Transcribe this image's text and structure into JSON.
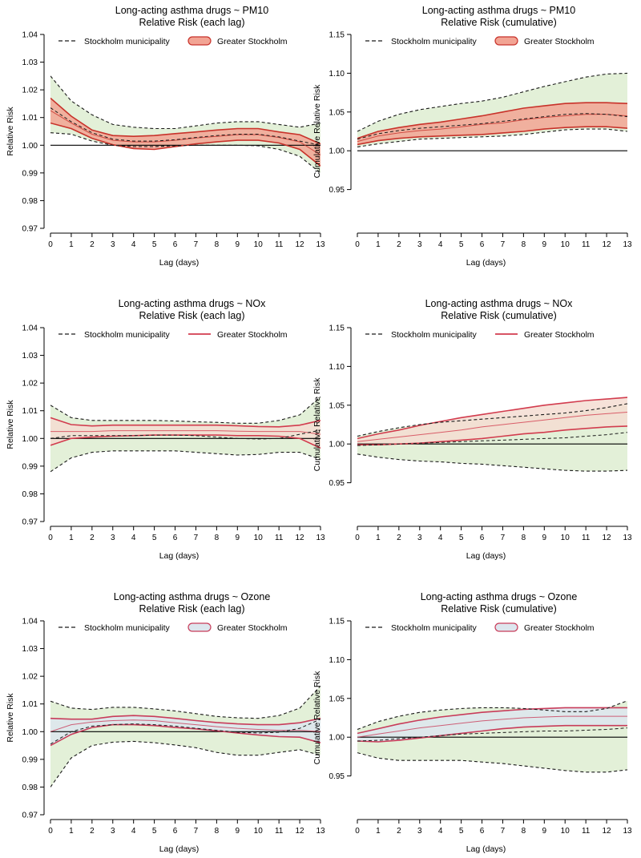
{
  "figure": {
    "xlabel": "Lag (days)",
    "legend_primary": "Stockholm municipality",
    "legend_secondary": "Greater Stockholm"
  },
  "colors": {
    "band_outer": "#e3f0d8",
    "pm10_band": "#f2a494",
    "pm10_line": "#c8322a",
    "nox_band": "#f4ddd2",
    "nox_line": "#d23c4e",
    "ozone_band": "#dde6ee",
    "ozone_line": "#c83c5a",
    "dashed": "#1a1a1a",
    "reference": "#000000"
  },
  "chart_data": [
    {
      "type": "line",
      "panel": "pm10-each",
      "title": "Long-acting asthma drugs ~ PM10",
      "subtitle": "Relative Risk (each lag)",
      "xlabel": "Lag (days)",
      "ylabel": "Relative Risk",
      "xlim": [
        0,
        13
      ],
      "ylim": [
        0.97,
        1.04
      ],
      "x_ticks": [
        "0",
        "1",
        "2",
        "3",
        "4",
        "5",
        "6",
        "7",
        "8",
        "9",
        "10",
        "11",
        "12",
        "13"
      ],
      "y_ticks": [
        "0.97",
        "0.98",
        "0.99",
        "1.00",
        "1.01",
        "1.02",
        "1.03",
        "1.04"
      ],
      "reference": 1.0,
      "band_key": "pm10",
      "legend_filled": true,
      "x": [
        0,
        1,
        2,
        3,
        4,
        5,
        6,
        7,
        8,
        9,
        10,
        11,
        12,
        13
      ],
      "series": [
        {
          "name": "Stockholm municipality",
          "estimate": [
            1.0135,
            1.0085,
            1.0045,
            1.0022,
            1.0015,
            1.0015,
            1.002,
            1.0028,
            1.0035,
            1.004,
            1.004,
            1.003,
            1.0015,
            1.0
          ],
          "lower": [
            1.0045,
            1.004,
            1.0015,
            1.0,
            0.9995,
            0.9995,
            0.9998,
            1.0,
            1.0,
            1.0,
            0.9998,
            0.9985,
            0.996,
            0.99
          ],
          "upper": [
            1.025,
            1.016,
            1.011,
            1.0075,
            1.0065,
            1.006,
            1.006,
            1.007,
            1.008,
            1.0085,
            1.0085,
            1.0075,
            1.0065,
            1.008
          ]
        },
        {
          "name": "Greater Stockholm",
          "estimate": [
            1.0125,
            1.008,
            1.004,
            1.0018,
            1.0012,
            1.0012,
            1.0018,
            1.0026,
            1.0032,
            1.0038,
            1.0038,
            1.0028,
            1.0012,
            0.9965
          ],
          "lower": [
            1.008,
            1.006,
            1.0025,
            1.0002,
            0.9988,
            0.9985,
            0.9995,
            1.0005,
            1.0012,
            1.0018,
            1.0018,
            1.0008,
            0.9985,
            0.9925
          ],
          "upper": [
            1.017,
            1.0105,
            1.0055,
            1.0035,
            1.0032,
            1.0035,
            1.0042,
            1.0048,
            1.0055,
            1.006,
            1.006,
            1.0048,
            1.0038,
            1.0005
          ]
        }
      ]
    },
    {
      "type": "line",
      "panel": "pm10-cum",
      "title": "Long-acting asthma drugs ~ PM10",
      "subtitle": "Relative Risk (cumulative)",
      "xlabel": "Lag (days)",
      "ylabel": "Cumulative Relative Risk",
      "xlim": [
        0,
        13
      ],
      "ylim": [
        0.9,
        1.15
      ],
      "x_ticks": [
        "0",
        "1",
        "2",
        "3",
        "4",
        "5",
        "6",
        "7",
        "8",
        "9",
        "10",
        "11",
        "12",
        "13"
      ],
      "y_ticks": [
        "0.95",
        "1.00",
        "1.05",
        "1.10",
        "1.15"
      ],
      "reference": 1.0,
      "band_key": "pm10",
      "legend_filled": true,
      "x": [
        0,
        1,
        2,
        3,
        4,
        5,
        6,
        7,
        8,
        9,
        10,
        11,
        12,
        13
      ],
      "series": [
        {
          "name": "Stockholm municipality",
          "estimate": [
            1.015,
            1.022,
            1.026,
            1.029,
            1.031,
            1.033,
            1.035,
            1.038,
            1.041,
            1.044,
            1.047,
            1.048,
            1.047,
            1.044
          ],
          "lower": [
            1.005,
            1.009,
            1.012,
            1.015,
            1.016,
            1.017,
            1.018,
            1.019,
            1.021,
            1.024,
            1.027,
            1.028,
            1.028,
            1.025
          ],
          "upper": [
            1.025,
            1.038,
            1.047,
            1.053,
            1.057,
            1.061,
            1.064,
            1.069,
            1.076,
            1.083,
            1.089,
            1.095,
            1.099,
            1.1
          ]
        },
        {
          "name": "Greater Stockholm",
          "estimate": [
            1.012,
            1.019,
            1.023,
            1.026,
            1.028,
            1.031,
            1.034,
            1.036,
            1.04,
            1.043,
            1.045,
            1.047,
            1.047,
            1.045
          ],
          "lower": [
            1.008,
            1.013,
            1.016,
            1.018,
            1.019,
            1.02,
            1.021,
            1.023,
            1.025,
            1.028,
            1.03,
            1.031,
            1.031,
            1.029
          ],
          "upper": [
            1.016,
            1.025,
            1.03,
            1.034,
            1.037,
            1.041,
            1.045,
            1.05,
            1.055,
            1.058,
            1.061,
            1.062,
            1.062,
            1.061
          ]
        }
      ]
    },
    {
      "type": "line",
      "panel": "nox-each",
      "title": "Long-acting asthma drugs ~ NOx",
      "subtitle": "Relative Risk (each lag)",
      "xlabel": "Lag (days)",
      "ylabel": "Relative Risk",
      "xlim": [
        0,
        13
      ],
      "ylim": [
        0.97,
        1.04
      ],
      "x_ticks": [
        "0",
        "1",
        "2",
        "3",
        "4",
        "5",
        "6",
        "7",
        "8",
        "9",
        "10",
        "11",
        "12",
        "13"
      ],
      "y_ticks": [
        "0.97",
        "0.98",
        "0.99",
        "1.00",
        "1.01",
        "1.02",
        "1.03",
        "1.04"
      ],
      "reference": 1.0,
      "band_key": "nox",
      "legend_filled": false,
      "x": [
        0,
        1,
        2,
        3,
        4,
        5,
        6,
        7,
        8,
        9,
        10,
        11,
        12,
        13
      ],
      "series": [
        {
          "name": "Stockholm municipality",
          "estimate": [
            1.0,
            1.001,
            1.001,
            1.001,
            1.001,
            1.0012,
            1.0012,
            1.001,
            1.0005,
            1.0,
            0.9998,
            1.0,
            1.0015,
            1.003
          ],
          "lower": [
            0.988,
            0.993,
            0.995,
            0.9955,
            0.9955,
            0.9955,
            0.9955,
            0.995,
            0.9945,
            0.994,
            0.9942,
            0.995,
            0.995,
            0.9925
          ],
          "upper": [
            1.012,
            1.0075,
            1.0065,
            1.0065,
            1.0065,
            1.0065,
            1.0063,
            1.006,
            1.0058,
            1.0055,
            1.0055,
            1.0065,
            1.0085,
            1.015
          ]
        },
        {
          "name": "Greater Stockholm",
          "estimate": [
            1.0025,
            1.0025,
            1.0025,
            1.0028,
            1.0028,
            1.0028,
            1.0028,
            1.0028,
            1.0028,
            1.0026,
            1.0025,
            1.0025,
            1.0025,
            1.0015
          ],
          "lower": [
            0.9975,
            1.0,
            1.0005,
            1.0008,
            1.001,
            1.0012,
            1.0012,
            1.0012,
            1.0012,
            1.001,
            1.001,
            1.0008,
            1.0,
            0.9965
          ],
          "upper": [
            1.0075,
            1.005,
            1.0045,
            1.0048,
            1.0048,
            1.0048,
            1.0048,
            1.0048,
            1.0048,
            1.0046,
            1.0043,
            1.0042,
            1.0048,
            1.0065
          ]
        }
      ]
    },
    {
      "type": "line",
      "panel": "nox-cum",
      "title": "Long-acting asthma drugs ~ NOx",
      "subtitle": "Relative Risk (cumulative)",
      "xlabel": "Lag (days)",
      "ylabel": "Cumulative Relative Risk",
      "xlim": [
        0,
        13
      ],
      "ylim": [
        0.9,
        1.15
      ],
      "x_ticks": [
        "0",
        "1",
        "2",
        "3",
        "4",
        "5",
        "6",
        "7",
        "8",
        "9",
        "10",
        "11",
        "12",
        "13"
      ],
      "y_ticks": [
        "0.95",
        "1.00",
        "1.05",
        "1.10",
        "1.15"
      ],
      "reference": 1.0,
      "band_key": "nox",
      "legend_filled": false,
      "x": [
        0,
        1,
        2,
        3,
        4,
        5,
        6,
        7,
        8,
        9,
        10,
        11,
        12,
        13
      ],
      "series": [
        {
          "name": "Stockholm municipality",
          "estimate": [
            0.998,
            0.999,
            1.0,
            1.001,
            1.002,
            1.003,
            1.004,
            1.005,
            1.006,
            1.007,
            1.008,
            1.01,
            1.012,
            1.015
          ],
          "lower": [
            0.987,
            0.983,
            0.98,
            0.978,
            0.977,
            0.975,
            0.974,
            0.972,
            0.97,
            0.968,
            0.966,
            0.965,
            0.965,
            0.966
          ],
          "upper": [
            1.01,
            1.016,
            1.021,
            1.025,
            1.028,
            1.03,
            1.032,
            1.034,
            1.036,
            1.038,
            1.04,
            1.043,
            1.047,
            1.052
          ]
        },
        {
          "name": "Greater Stockholm",
          "estimate": [
            1.003,
            1.006,
            1.009,
            1.012,
            1.015,
            1.018,
            1.022,
            1.025,
            1.028,
            1.031,
            1.034,
            1.037,
            1.039,
            1.041
          ],
          "lower": [
            0.999,
            0.999,
            1.0,
            1.001,
            1.003,
            1.005,
            1.007,
            1.01,
            1.013,
            1.015,
            1.018,
            1.02,
            1.022,
            1.023
          ],
          "upper": [
            1.007,
            1.013,
            1.018,
            1.024,
            1.029,
            1.034,
            1.038,
            1.042,
            1.046,
            1.05,
            1.053,
            1.056,
            1.058,
            1.06
          ]
        }
      ]
    },
    {
      "type": "line",
      "panel": "ozone-each",
      "title": "Long-acting asthma drugs ~ Ozone",
      "subtitle": "Relative Risk (each lag)",
      "xlabel": "Lag (days)",
      "ylabel": "Relative Risk",
      "xlim": [
        0,
        13
      ],
      "ylim": [
        0.97,
        1.04
      ],
      "x_ticks": [
        "0",
        "1",
        "2",
        "3",
        "4",
        "5",
        "6",
        "7",
        "8",
        "9",
        "10",
        "11",
        "12",
        "13"
      ],
      "y_ticks": [
        "0.97",
        "0.98",
        "0.99",
        "1.00",
        "1.01",
        "1.02",
        "1.03",
        "1.04"
      ],
      "reference": 1.0,
      "band_key": "ozone",
      "legend_filled": true,
      "x": [
        0,
        1,
        2,
        3,
        4,
        5,
        6,
        7,
        8,
        9,
        10,
        11,
        12,
        13
      ],
      "series": [
        {
          "name": "Stockholm municipality",
          "estimate": [
            0.9955,
            1.0,
            1.002,
            1.0025,
            1.0028,
            1.0025,
            1.002,
            1.0012,
            1.0005,
            0.9998,
            0.9995,
            0.9998,
            1.0012,
            1.0045
          ],
          "lower": [
            0.98,
            0.9905,
            0.995,
            0.9962,
            0.9965,
            0.996,
            0.9952,
            0.9942,
            0.9925,
            0.9915,
            0.9915,
            0.9925,
            0.9935,
            0.9915
          ],
          "upper": [
            1.011,
            1.0085,
            1.008,
            1.0088,
            1.0088,
            1.0082,
            1.0075,
            1.0065,
            1.0055,
            1.005,
            1.0048,
            1.0058,
            1.0085,
            1.0165
          ]
        },
        {
          "name": "Greater Stockholm",
          "estimate": [
            1.0,
            1.0025,
            1.0035,
            1.004,
            1.0042,
            1.004,
            1.0032,
            1.0025,
            1.0018,
            1.0012,
            1.0008,
            1.0005,
            1.0005,
            1.0
          ],
          "lower": [
            0.995,
            0.999,
            1.0015,
            1.0025,
            1.0025,
            1.0022,
            1.0015,
            1.001,
            1.0003,
            0.9995,
            0.9988,
            0.9982,
            0.998,
            0.996
          ],
          "upper": [
            1.0048,
            1.0045,
            1.0045,
            1.0055,
            1.0058,
            1.0055,
            1.0048,
            1.004,
            1.0033,
            1.0028,
            1.0025,
            1.0025,
            1.0032,
            1.0048
          ]
        }
      ]
    },
    {
      "type": "line",
      "panel": "ozone-cum",
      "title": "Long-acting asthma drugs ~ Ozone",
      "subtitle": "Relative Risk (cumulative)",
      "xlabel": "Lag (days)",
      "ylabel": "Cumulative Relative Risk",
      "xlim": [
        0,
        13
      ],
      "ylim": [
        0.9,
        1.15
      ],
      "x_ticks": [
        "0",
        "1",
        "2",
        "3",
        "4",
        "5",
        "6",
        "7",
        "8",
        "9",
        "10",
        "11",
        "12",
        "13"
      ],
      "y_ticks": [
        "0.95",
        "1.00",
        "1.05",
        "1.10",
        "1.15"
      ],
      "reference": 1.0,
      "band_key": "ozone",
      "legend_filled": true,
      "x": [
        0,
        1,
        2,
        3,
        4,
        5,
        6,
        7,
        8,
        9,
        10,
        11,
        12,
        13
      ],
      "series": [
        {
          "name": "Stockholm municipality",
          "estimate": [
            0.995,
            0.996,
            0.998,
            1.0,
            1.002,
            1.004,
            1.005,
            1.006,
            1.007,
            1.008,
            1.008,
            1.009,
            1.01,
            1.012
          ],
          "lower": [
            0.98,
            0.973,
            0.97,
            0.97,
            0.97,
            0.97,
            0.968,
            0.966,
            0.963,
            0.96,
            0.957,
            0.955,
            0.955,
            0.958
          ],
          "upper": [
            1.01,
            1.02,
            1.027,
            1.032,
            1.035,
            1.037,
            1.038,
            1.038,
            1.037,
            1.035,
            1.033,
            1.033,
            1.037,
            1.047
          ]
        },
        {
          "name": "Greater Stockholm",
          "estimate": [
            1.0,
            1.004,
            1.008,
            1.012,
            1.015,
            1.018,
            1.021,
            1.023,
            1.025,
            1.026,
            1.027,
            1.027,
            1.027,
            1.027
          ],
          "lower": [
            0.995,
            0.994,
            0.996,
            0.999,
            1.002,
            1.005,
            1.008,
            1.011,
            1.013,
            1.014,
            1.015,
            1.015,
            1.015,
            1.015
          ],
          "upper": [
            1.005,
            1.011,
            1.017,
            1.022,
            1.026,
            1.029,
            1.032,
            1.034,
            1.036,
            1.037,
            1.038,
            1.038,
            1.038,
            1.038
          ]
        }
      ]
    }
  ]
}
